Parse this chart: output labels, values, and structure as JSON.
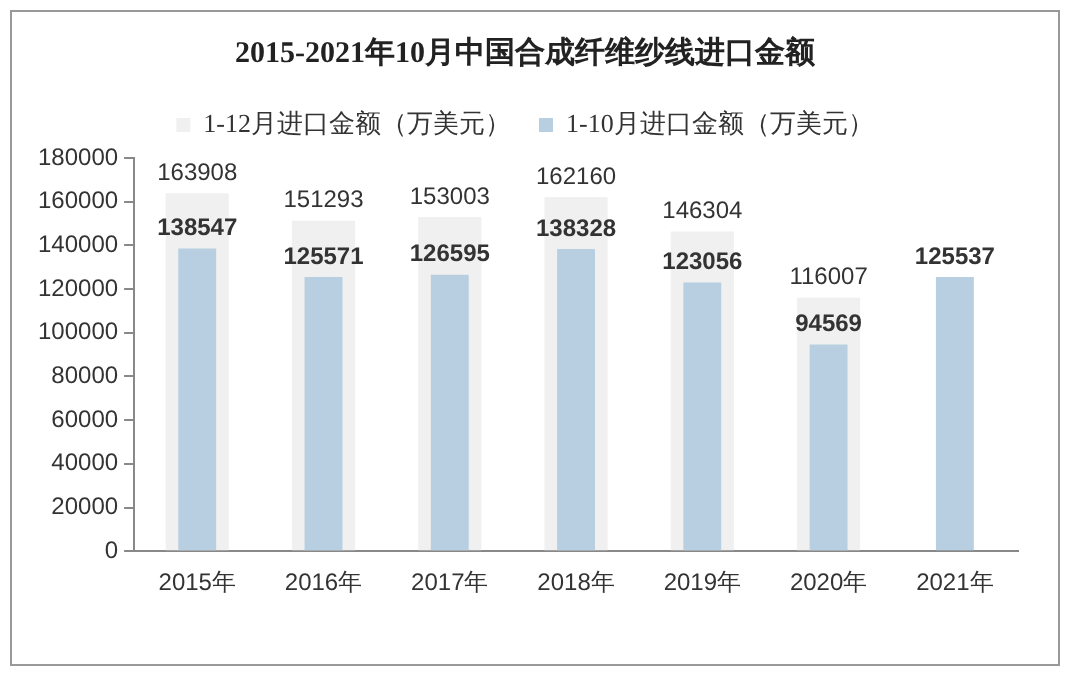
{
  "chart_data": {
    "type": "bar",
    "title": "2015-2021年10月中国合成纤维纱线进口金额",
    "categories": [
      "2015年",
      "2016年",
      "2017年",
      "2018年",
      "2019年",
      "2020年",
      "2021年"
    ],
    "series": [
      {
        "name": "1-12月进口金额（万美元）",
        "color": "#f0f0f0",
        "values": [
          163908,
          151293,
          153003,
          162160,
          146304,
          116007,
          null
        ]
      },
      {
        "name": "1-10月进口金额（万美元）",
        "color": "#b7cfe0",
        "values": [
          138547,
          125571,
          126595,
          138328,
          123056,
          94569,
          125537
        ]
      }
    ],
    "ylim": [
      0,
      180000
    ],
    "yticks": [
      0,
      20000,
      40000,
      60000,
      80000,
      100000,
      120000,
      140000,
      160000,
      180000
    ],
    "grid": false,
    "legend": "top",
    "data_labels": true
  }
}
